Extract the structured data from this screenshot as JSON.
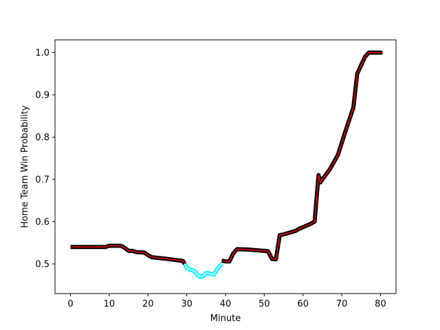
{
  "chart_data": {
    "type": "line",
    "title": "",
    "xlabel": "Minute",
    "ylabel": "Home Team Win Probability",
    "xlim": [
      -4,
      84
    ],
    "ylim": [
      0.43,
      1.03
    ],
    "xticks": [
      0,
      10,
      20,
      30,
      40,
      50,
      60,
      70,
      80
    ],
    "yticks": [
      0.5,
      0.6,
      0.7,
      0.8,
      0.9,
      1.0
    ],
    "grid": false,
    "colors": {
      "main_outline": "#000000",
      "main_fill": "#ff0000",
      "highlight_outline": "#00ffff",
      "highlight_fill": "#ffffff"
    },
    "series": [
      {
        "x": [
          0,
          5,
          9,
          10,
          13,
          14,
          15,
          16,
          17,
          19,
          20,
          21,
          25,
          29,
          29.5
        ],
        "y": [
          0.54,
          0.54,
          0.54,
          0.543,
          0.543,
          0.538,
          0.531,
          0.531,
          0.528,
          0.527,
          0.521,
          0.516,
          0.512,
          0.507,
          0.5
        ]
      },
      {
        "highlight": true,
        "x": [
          29.5,
          30,
          31,
          32,
          33,
          34,
          35,
          36,
          37,
          38,
          39
        ],
        "y": [
          0.5,
          0.49,
          0.486,
          0.483,
          0.471,
          0.47,
          0.479,
          0.477,
          0.475,
          0.49,
          0.5
        ]
      },
      {
        "x": [
          39,
          40,
          41,
          42,
          43,
          46,
          50,
          51,
          52,
          53,
          54,
          55,
          58,
          59,
          62,
          63,
          64,
          64.5,
          65,
          67,
          69,
          71,
          73,
          74,
          76,
          77,
          78,
          80.5
        ],
        "y": [
          0.508,
          0.506,
          0.506,
          0.525,
          0.535,
          0.534,
          0.531,
          0.53,
          0.512,
          0.511,
          0.568,
          0.57,
          0.578,
          0.583,
          0.595,
          0.6,
          0.71,
          0.693,
          0.7,
          0.725,
          0.758,
          0.815,
          0.87,
          0.95,
          0.99,
          1.0,
          1.0,
          1.0
        ]
      }
    ]
  }
}
